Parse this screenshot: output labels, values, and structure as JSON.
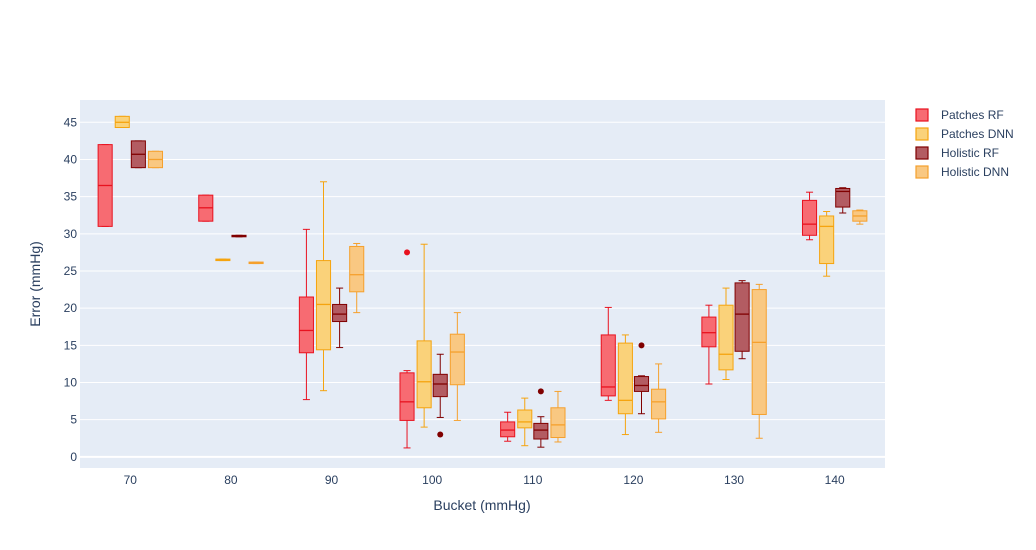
{
  "chart_data": {
    "type": "box",
    "xlabel": "Bucket (mmHg)",
    "ylabel": "Error (mmHg)",
    "xlim": [
      65,
      145
    ],
    "ylim": [
      -1.5,
      48
    ],
    "x_ticks": [
      70,
      80,
      90,
      100,
      110,
      120,
      130,
      140
    ],
    "y_ticks": [
      0,
      5,
      10,
      15,
      20,
      25,
      30,
      35,
      40,
      45
    ],
    "legend_position": "top-right",
    "grid": true,
    "series": [
      {
        "name": "Patches RF",
        "line_color": "#e8121f",
        "fill_color": "#f76b72",
        "offset": -2.5,
        "boxes": [
          {
            "bucket": 70,
            "q1": 31.0,
            "median": 36.5,
            "q3": 42.0,
            "low": 31.0,
            "high": 42.0,
            "outliers": []
          },
          {
            "bucket": 80,
            "q1": 31.7,
            "median": 33.5,
            "q3": 35.2,
            "low": 31.7,
            "high": 35.2,
            "outliers": []
          },
          {
            "bucket": 90,
            "q1": 14.0,
            "median": 17.0,
            "q3": 21.5,
            "low": 7.7,
            "high": 30.6,
            "outliers": []
          },
          {
            "bucket": 100,
            "q1": 4.9,
            "median": 7.4,
            "q3": 11.3,
            "low": 1.2,
            "high": 11.6,
            "outliers": [
              27.5
            ]
          },
          {
            "bucket": 110,
            "q1": 2.7,
            "median": 3.6,
            "q3": 4.7,
            "low": 2.1,
            "high": 6.0,
            "outliers": []
          },
          {
            "bucket": 120,
            "q1": 8.2,
            "median": 9.4,
            "q3": 16.4,
            "low": 7.6,
            "high": 20.1,
            "outliers": []
          },
          {
            "bucket": 130,
            "q1": 14.8,
            "median": 16.7,
            "q3": 18.8,
            "low": 9.8,
            "high": 20.4,
            "outliers": []
          },
          {
            "bucket": 140,
            "q1": 29.8,
            "median": 31.3,
            "q3": 34.5,
            "low": 29.2,
            "high": 35.6,
            "outliers": []
          }
        ]
      },
      {
        "name": "Patches DNN",
        "line_color": "#f5a40f",
        "fill_color": "#fad27a",
        "offset": -0.8,
        "boxes": [
          {
            "bucket": 70,
            "q1": 44.3,
            "median": 45.0,
            "q3": 45.8,
            "low": 44.3,
            "high": 45.8,
            "outliers": []
          },
          {
            "bucket": 80,
            "q1": 26.4,
            "median": 26.5,
            "q3": 26.6,
            "low": 26.4,
            "high": 26.6,
            "outliers": []
          },
          {
            "bucket": 90,
            "q1": 14.4,
            "median": 20.5,
            "q3": 26.4,
            "low": 8.9,
            "high": 37.0,
            "outliers": []
          },
          {
            "bucket": 100,
            "q1": 6.6,
            "median": 10.1,
            "q3": 15.6,
            "low": 4.0,
            "high": 28.6,
            "outliers": []
          },
          {
            "bucket": 110,
            "q1": 3.9,
            "median": 4.7,
            "q3": 6.3,
            "low": 1.5,
            "high": 7.9,
            "outliers": []
          },
          {
            "bucket": 120,
            "q1": 5.8,
            "median": 7.6,
            "q3": 15.3,
            "low": 3.0,
            "high": 16.4,
            "outliers": []
          },
          {
            "bucket": 130,
            "q1": 11.7,
            "median": 13.8,
            "q3": 20.4,
            "low": 10.4,
            "high": 22.7,
            "outliers": []
          },
          {
            "bucket": 140,
            "q1": 26.0,
            "median": 31.0,
            "q3": 32.4,
            "low": 24.3,
            "high": 33.0,
            "outliers": []
          }
        ]
      },
      {
        "name": "Holistic RF",
        "line_color": "#800000",
        "fill_color": "#b35c62",
        "offset": 0.8,
        "boxes": [
          {
            "bucket": 70,
            "q1": 38.9,
            "median": 40.7,
            "q3": 42.5,
            "low": 38.9,
            "high": 42.5,
            "outliers": []
          },
          {
            "bucket": 80,
            "q1": 29.6,
            "median": 29.7,
            "q3": 29.8,
            "low": 29.6,
            "high": 29.8,
            "outliers": []
          },
          {
            "bucket": 90,
            "q1": 18.2,
            "median": 19.2,
            "q3": 20.5,
            "low": 14.7,
            "high": 22.7,
            "outliers": []
          },
          {
            "bucket": 100,
            "q1": 8.1,
            "median": 9.8,
            "q3": 11.1,
            "low": 5.3,
            "high": 13.8,
            "outliers": [
              3.0
            ]
          },
          {
            "bucket": 110,
            "q1": 2.4,
            "median": 3.6,
            "q3": 4.5,
            "low": 1.3,
            "high": 5.4,
            "outliers": [
              8.8
            ]
          },
          {
            "bucket": 120,
            "q1": 8.8,
            "median": 9.6,
            "q3": 10.8,
            "low": 5.8,
            "high": 10.9,
            "outliers": [
              15.0
            ]
          },
          {
            "bucket": 130,
            "q1": 14.2,
            "median": 19.2,
            "q3": 23.4,
            "low": 13.2,
            "high": 23.7,
            "outliers": []
          },
          {
            "bucket": 140,
            "q1": 33.6,
            "median": 35.7,
            "q3": 36.1,
            "low": 32.8,
            "high": 36.2,
            "outliers": []
          }
        ]
      },
      {
        "name": "Holistic DNN",
        "line_color": "#f5a02d",
        "fill_color": "#f9c882",
        "offset": 2.5,
        "boxes": [
          {
            "bucket": 70,
            "q1": 38.9,
            "median": 40.0,
            "q3": 41.1,
            "low": 38.9,
            "high": 41.1,
            "outliers": []
          },
          {
            "bucket": 80,
            "q1": 26.0,
            "median": 26.1,
            "q3": 26.2,
            "low": 26.0,
            "high": 26.2,
            "outliers": []
          },
          {
            "bucket": 90,
            "q1": 22.2,
            "median": 24.5,
            "q3": 28.3,
            "low": 19.4,
            "high": 28.7,
            "outliers": []
          },
          {
            "bucket": 100,
            "q1": 9.7,
            "median": 14.1,
            "q3": 16.5,
            "low": 4.9,
            "high": 19.4,
            "outliers": []
          },
          {
            "bucket": 110,
            "q1": 2.6,
            "median": 4.3,
            "q3": 6.6,
            "low": 2.0,
            "high": 8.8,
            "outliers": []
          },
          {
            "bucket": 120,
            "q1": 5.1,
            "median": 7.4,
            "q3": 9.1,
            "low": 3.3,
            "high": 12.5,
            "outliers": []
          },
          {
            "bucket": 130,
            "q1": 5.7,
            "median": 15.4,
            "q3": 22.5,
            "low": 2.5,
            "high": 23.2,
            "outliers": []
          },
          {
            "bucket": 140,
            "q1": 31.7,
            "median": 32.4,
            "q3": 33.1,
            "low": 31.3,
            "high": 33.2,
            "outliers": []
          }
        ]
      }
    ]
  }
}
